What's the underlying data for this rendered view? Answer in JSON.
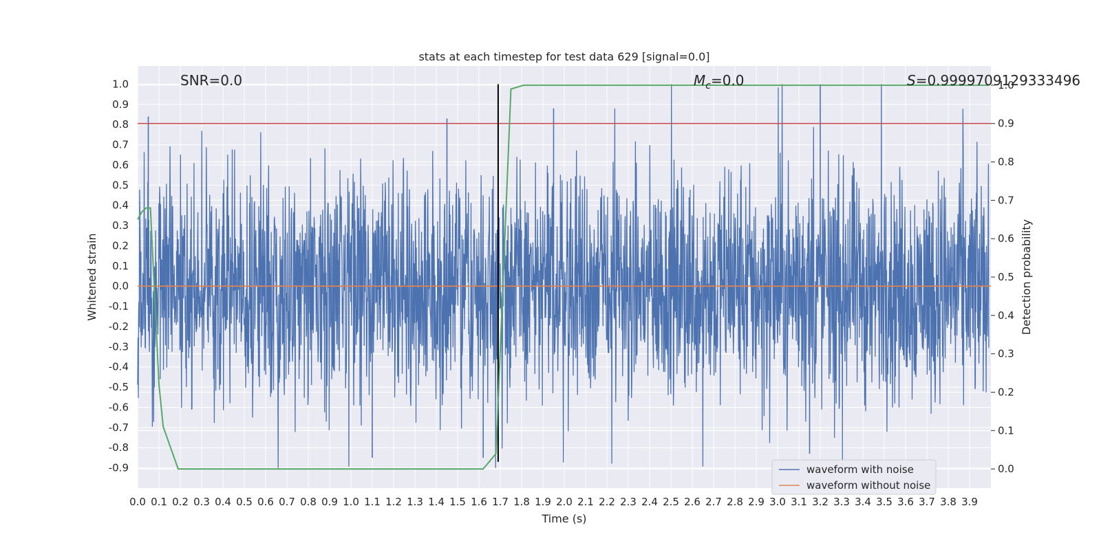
{
  "chart_data": {
    "type": "line",
    "title": "stats at each timestep for test data 629 [signal=0.0]",
    "xlabel": "Time (s)",
    "ylabel": "Whitened strain",
    "ylabel_right": "Detection probability",
    "xlim": [
      0.0,
      4.0
    ],
    "ylim": [
      -1.0,
      1.09
    ],
    "ylim_right": [
      -0.05,
      1.05
    ],
    "x_ticks": [
      "0.0",
      "0.1",
      "0.2",
      "0.3",
      "0.4",
      "0.5",
      "0.6",
      "0.7",
      "0.8",
      "0.9",
      "1.0",
      "1.1",
      "1.2",
      "1.3",
      "1.4",
      "1.5",
      "1.6",
      "1.7",
      "1.8",
      "1.9",
      "2.0",
      "2.1",
      "2.2",
      "2.3",
      "2.4",
      "2.5",
      "2.6",
      "2.7",
      "2.8",
      "2.9",
      "3.0",
      "3.1",
      "3.2",
      "3.3",
      "3.4",
      "3.5",
      "3.6",
      "3.7",
      "3.8",
      "3.9"
    ],
    "y_ticks": [
      "1.0",
      "0.9",
      "0.8",
      "0.7",
      "0.6",
      "0.5",
      "0.4",
      "0.3",
      "0.2",
      "0.1",
      "0.0",
      "-0.1",
      "-0.2",
      "-0.3",
      "-0.4",
      "-0.5",
      "-0.6",
      "-0.7",
      "-0.8",
      "-0.9"
    ],
    "y_ticks_right": [
      "1.0",
      "0.9",
      "0.8",
      "0.7",
      "0.6",
      "0.5",
      "0.4",
      "0.3",
      "0.2",
      "0.1",
      "0.0"
    ],
    "grid": true,
    "legend_placement": "lower-right",
    "annotations": {
      "snr": "SNR=0.0",
      "mc_symbol": "M",
      "mc_subscript": "c",
      "mc_value": "=0.0",
      "s_symbol": "S",
      "s_value": "=0.9999709129333496"
    },
    "series": [
      {
        "name": "waveform with noise",
        "color": "#4c72b0",
        "description_note": "dense noise between roughly -0.9 and 1.0",
        "noise_envelope": [
          -0.9,
          1.0
        ],
        "spikes": [
          {
            "x": 0.05,
            "y": 0.84
          },
          {
            "x": 1.45,
            "y": 0.83
          },
          {
            "x": 1.69,
            "y": 0.93
          },
          {
            "x": 1.95,
            "y": 0.88
          },
          {
            "x": 3.2,
            "y": 1.0
          },
          {
            "x": 1.62,
            "y": -0.85
          },
          {
            "x": 1.1,
            "y": -0.85
          },
          {
            "x": 3.15,
            "y": -0.83
          }
        ]
      },
      {
        "name": "waveform without noise",
        "color": "#dd8452",
        "y": 0.0
      }
    ],
    "detection_probability": {
      "color": "#55a868",
      "axis": "right",
      "x": [
        0.0,
        0.02,
        0.04,
        0.06,
        0.1,
        0.12,
        0.19,
        1.62,
        1.68,
        1.75,
        1.81,
        3.99
      ],
      "y": [
        0.65,
        0.67,
        0.68,
        0.68,
        0.22,
        0.11,
        0.0,
        0.0,
        0.04,
        0.99,
        1.0,
        1.0
      ]
    },
    "threshold_line": {
      "color": "#c44e52",
      "y_right": 0.9
    },
    "vertical_marker": {
      "color": "#000000",
      "x": 1.69,
      "y_range": [
        -0.87,
        1.0
      ]
    }
  }
}
